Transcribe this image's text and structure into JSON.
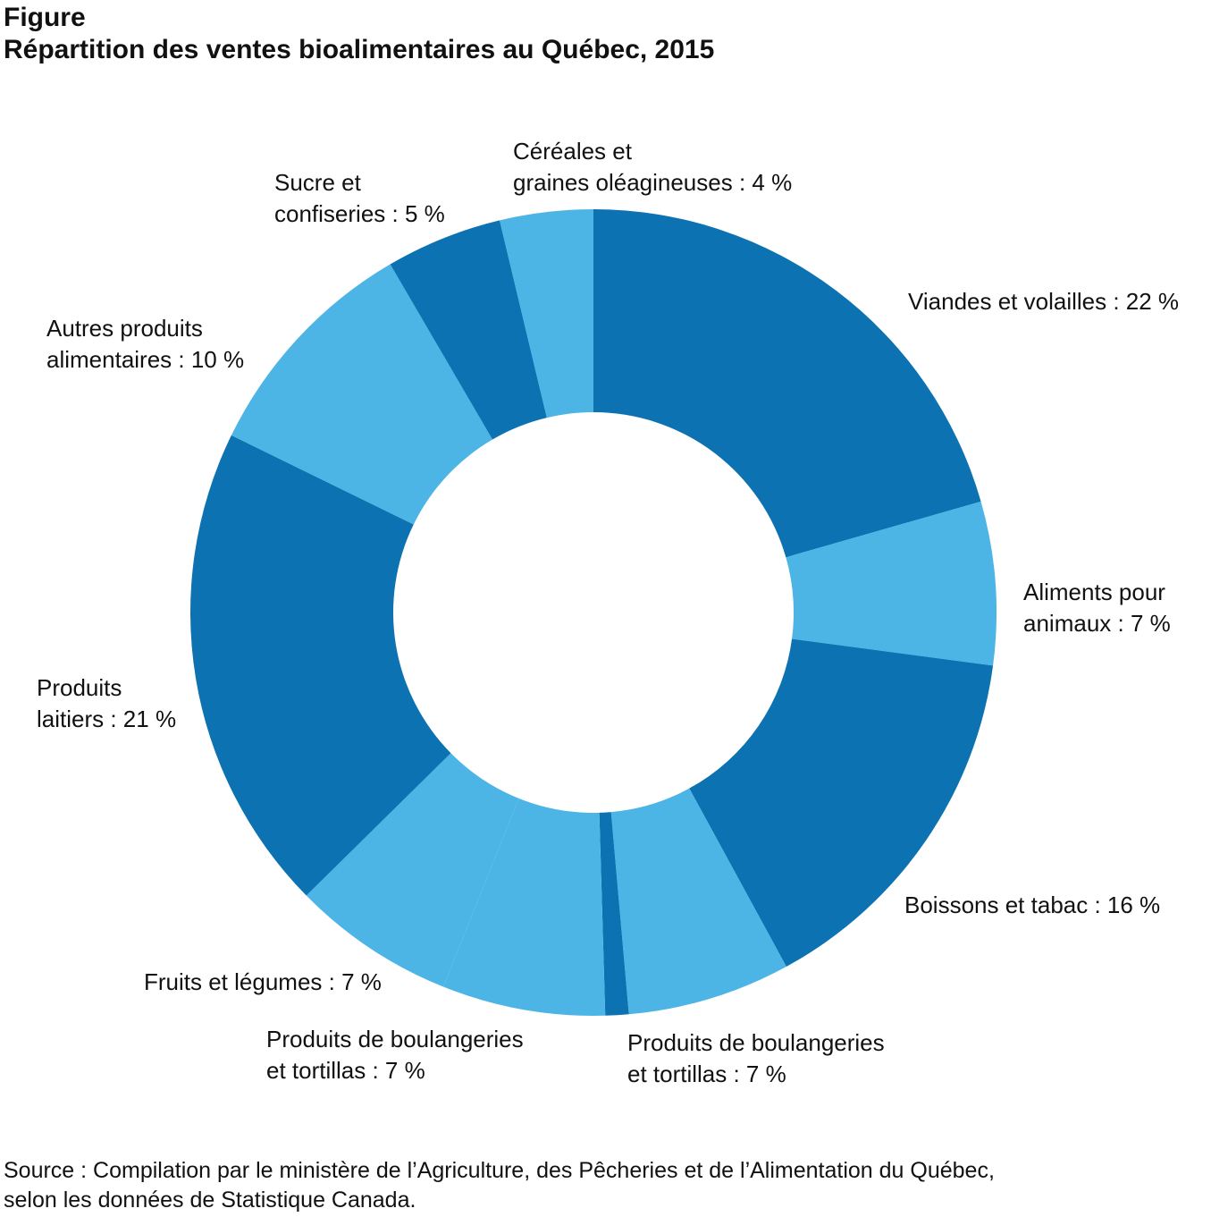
{
  "figure": {
    "label": "Figure",
    "title": "Répartition des ventes bioalimentaires au Québec, 2015"
  },
  "source": {
    "line1": "Source : Compilation par le ministère de l’Agriculture, des Pêcheries et de l’Alimentation du Québec,",
    "line2": "selon les données de Statistique Canada."
  },
  "colors": {
    "dark": "#0c72b2",
    "light": "#4db5e6"
  },
  "chart_data": {
    "type": "pie",
    "donut": true,
    "title": "Répartition des ventes bioalimentaires au Québec, 2015",
    "unit": "%",
    "slices": [
      {
        "label_lines": [
          "Viandes et volailles : 22 %"
        ],
        "value": 22,
        "shade": "dark"
      },
      {
        "label_lines": [
          "Aliments pour",
          "animaux : 7 %"
        ],
        "value": 7,
        "shade": "light"
      },
      {
        "label_lines": [
          "Boissons et tabac : 16 %"
        ],
        "value": 16,
        "shade": "dark"
      },
      {
        "label_lines": [
          "Produits de boulangeries",
          "et tortillas : 7 %"
        ],
        "value": 7,
        "shade": "light"
      },
      {
        "label_lines": [],
        "value": 1,
        "shade": "dark"
      },
      {
        "label_lines": [
          "Produits de boulangeries",
          "et tortillas : 7 %"
        ],
        "value": 7,
        "shade": "light"
      },
      {
        "label_lines": [
          "Fruits et légumes : 7 %"
        ],
        "value": 7,
        "shade": "light"
      },
      {
        "label_lines": [
          "Produits",
          "laitiers : 21 %"
        ],
        "value": 21,
        "shade": "dark"
      },
      {
        "label_lines": [
          "Autres produits",
          "alimentaires : 10 %"
        ],
        "value": 10,
        "shade": "light"
      },
      {
        "label_lines": [
          "Sucre et",
          "confiseries : 5 %"
        ],
        "value": 5,
        "shade": "dark"
      },
      {
        "label_lines": [
          "Céréales et",
          "graines oléagineuses : 4 %"
        ],
        "value": 4,
        "shade": "light"
      }
    ]
  }
}
